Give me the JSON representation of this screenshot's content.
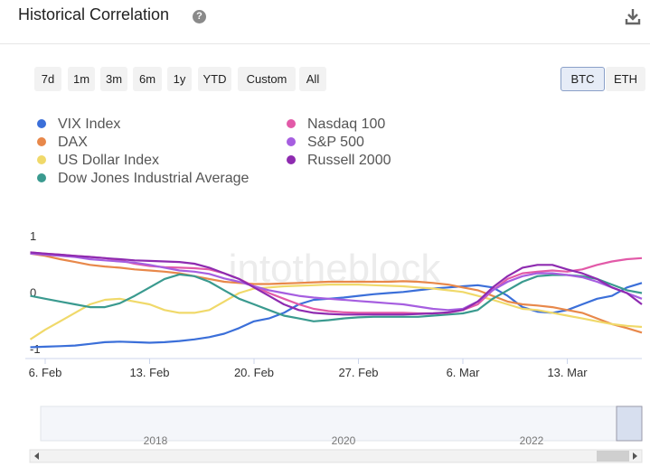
{
  "header": {
    "title": "Historical Correlation"
  },
  "range_buttons": [
    "7d",
    "1m",
    "3m",
    "6m",
    "1y",
    "YTD",
    "Custom",
    "All"
  ],
  "asset_buttons": [
    "BTC",
    "ETH"
  ],
  "selected_asset_index": 0,
  "chart_data": {
    "type": "line",
    "watermark": "intotheblock",
    "categories": [
      null,
      "6. Feb",
      null,
      null,
      null,
      null,
      null,
      null,
      "13. Feb",
      null,
      null,
      null,
      null,
      null,
      null,
      "20. Feb",
      null,
      null,
      null,
      null,
      null,
      null,
      "27. Feb",
      null,
      null,
      null,
      null,
      null,
      null,
      "6. Mar",
      null,
      null,
      null,
      null,
      null,
      null,
      "13. Mar",
      null,
      null,
      null,
      null,
      null
    ],
    "ylim": [
      -1.15,
      1.1
    ],
    "yticks": [
      1,
      0,
      -1
    ],
    "grid": false,
    "series": [
      {
        "name": "VIX Index",
        "color": "#3b6fd9",
        "values": [
          -0.96,
          -0.95,
          -0.94,
          -0.93,
          -0.9,
          -0.87,
          -0.86,
          -0.87,
          -0.88,
          -0.87,
          -0.85,
          -0.82,
          -0.78,
          -0.72,
          -0.62,
          -0.5,
          -0.45,
          -0.35,
          -0.2,
          -0.12,
          -0.1,
          -0.08,
          -0.05,
          -0.02,
          0.0,
          0.02,
          0.05,
          0.08,
          0.1,
          0.12,
          0.14,
          0.1,
          -0.05,
          -0.25,
          -0.33,
          -0.35,
          -0.3,
          -0.2,
          -0.1,
          -0.05,
          0.1,
          0.18
        ]
      },
      {
        "name": "DAX",
        "color": "#e8884a",
        "values": [
          0.7,
          0.66,
          0.6,
          0.55,
          0.5,
          0.47,
          0.45,
          0.42,
          0.4,
          0.38,
          0.35,
          0.3,
          0.25,
          0.2,
          0.18,
          0.16,
          0.16,
          0.17,
          0.18,
          0.19,
          0.2,
          0.2,
          0.2,
          0.2,
          0.2,
          0.21,
          0.2,
          0.18,
          0.15,
          0.1,
          0.05,
          -0.05,
          -0.15,
          -0.2,
          -0.22,
          -0.25,
          -0.3,
          -0.35,
          -0.45,
          -0.55,
          -0.62,
          -0.7
        ]
      },
      {
        "name": "US Dollar Index",
        "color": "#f0d96a",
        "values": [
          -0.82,
          -0.65,
          -0.5,
          -0.35,
          -0.2,
          -0.12,
          -0.1,
          -0.15,
          -0.2,
          -0.3,
          -0.35,
          -0.35,
          -0.3,
          -0.15,
          0.0,
          0.08,
          0.1,
          0.12,
          0.13,
          0.14,
          0.15,
          0.15,
          0.15,
          0.14,
          0.13,
          0.12,
          0.1,
          0.08,
          0.05,
          0.02,
          -0.05,
          -0.12,
          -0.2,
          -0.28,
          -0.3,
          -0.35,
          -0.4,
          -0.45,
          -0.5,
          -0.55,
          -0.58,
          -0.6
        ]
      },
      {
        "name": "Dow Jones Industrial Average",
        "color": "#3a9a8f",
        "values": [
          -0.05,
          -0.1,
          -0.15,
          -0.2,
          -0.25,
          -0.25,
          -0.18,
          -0.05,
          0.1,
          0.25,
          0.33,
          0.3,
          0.2,
          0.05,
          -0.1,
          -0.2,
          -0.3,
          -0.4,
          -0.45,
          -0.5,
          -0.48,
          -0.45,
          -0.43,
          -0.42,
          -0.42,
          -0.42,
          -0.42,
          -0.4,
          -0.38,
          -0.36,
          -0.3,
          -0.1,
          0.05,
          0.2,
          0.3,
          0.32,
          0.32,
          0.3,
          0.25,
          0.15,
          0.05,
          0.0
        ]
      },
      {
        "name": "Nasdaq 100",
        "color": "#e25aa8",
        "values": [
          0.72,
          0.7,
          0.68,
          0.66,
          0.64,
          0.62,
          0.58,
          0.52,
          0.48,
          0.46,
          0.45,
          0.44,
          0.42,
          0.35,
          0.25,
          0.12,
          0.0,
          -0.1,
          -0.2,
          -0.28,
          -0.32,
          -0.34,
          -0.35,
          -0.35,
          -0.35,
          -0.35,
          -0.36,
          -0.36,
          -0.35,
          -0.3,
          -0.2,
          0.05,
          0.25,
          0.35,
          0.38,
          0.4,
          0.38,
          0.42,
          0.5,
          0.56,
          0.6,
          0.62
        ]
      },
      {
        "name": "S&P 500",
        "color": "#a65ee0",
        "values": [
          0.7,
          0.68,
          0.66,
          0.64,
          0.6,
          0.58,
          0.56,
          0.54,
          0.5,
          0.45,
          0.4,
          0.38,
          0.34,
          0.26,
          0.2,
          0.12,
          0.05,
          0.0,
          -0.05,
          -0.08,
          -0.1,
          -0.12,
          -0.14,
          -0.16,
          -0.18,
          -0.2,
          -0.24,
          -0.28,
          -0.3,
          -0.28,
          -0.15,
          0.05,
          0.2,
          0.3,
          0.35,
          0.35,
          0.32,
          0.28,
          0.2,
          0.1,
          0.0,
          -0.1
        ]
      },
      {
        "name": "Russell 2000",
        "color": "#8e2bb0",
        "values": [
          0.72,
          0.7,
          0.68,
          0.66,
          0.64,
          0.62,
          0.6,
          0.58,
          0.57,
          0.56,
          0.55,
          0.52,
          0.45,
          0.35,
          0.25,
          0.1,
          -0.05,
          -0.2,
          -0.3,
          -0.35,
          -0.37,
          -0.38,
          -0.38,
          -0.38,
          -0.38,
          -0.38,
          -0.37,
          -0.36,
          -0.34,
          -0.3,
          -0.15,
          0.1,
          0.3,
          0.45,
          0.5,
          0.5,
          0.42,
          0.35,
          0.25,
          0.1,
          0.0,
          -0.2
        ]
      }
    ]
  },
  "navigator": {
    "labels": [
      "2018",
      "2020",
      "2022"
    ]
  }
}
